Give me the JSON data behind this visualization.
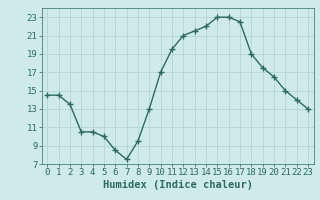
{
  "x": [
    0,
    1,
    2,
    3,
    4,
    5,
    6,
    7,
    8,
    9,
    10,
    11,
    12,
    13,
    14,
    15,
    16,
    17,
    18,
    19,
    20,
    21,
    22,
    23
  ],
  "y": [
    14.5,
    14.5,
    13.5,
    10.5,
    10.5,
    10.0,
    8.5,
    7.5,
    9.5,
    13.0,
    17.0,
    19.5,
    21.0,
    21.5,
    22.0,
    23.0,
    23.0,
    22.5,
    19.0,
    17.5,
    16.5,
    15.0,
    14.0,
    13.0
  ],
  "line_color": "#2e6b5e",
  "marker": "+",
  "marker_size": 4,
  "bg_color": "#ceeaea",
  "grid_color": "#b8d8d8",
  "xlabel": "Humidex (Indice chaleur)",
  "xlim": [
    -0.5,
    23.5
  ],
  "ylim": [
    7,
    24
  ],
  "yticks": [
    7,
    9,
    11,
    13,
    15,
    17,
    19,
    21,
    23
  ],
  "xticks": [
    0,
    1,
    2,
    3,
    4,
    5,
    6,
    7,
    8,
    9,
    10,
    11,
    12,
    13,
    14,
    15,
    16,
    17,
    18,
    19,
    20,
    21,
    22,
    23
  ],
  "xlabel_fontsize": 7.5,
  "tick_fontsize": 6.5
}
